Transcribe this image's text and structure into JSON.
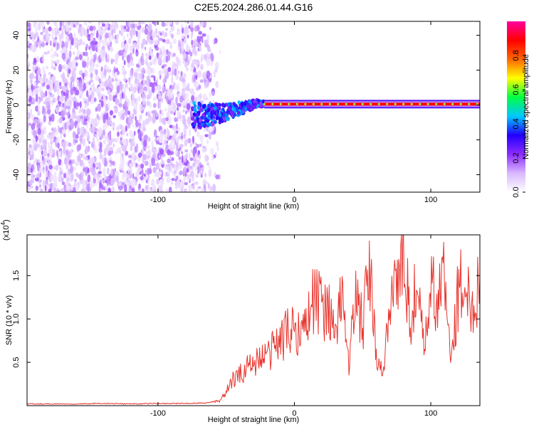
{
  "title": "C2E5.2024.286.01.44.G16",
  "chart_data": [
    {
      "type": "heatmap",
      "xlabel": "Height of straight line (km)",
      "ylabel": "Frequency (Hz)",
      "xlim": [
        -196,
        136
      ],
      "ylim": [
        -50,
        48
      ],
      "xticks": [
        -100,
        0,
        100
      ],
      "xtick_labels": [
        "-100",
        "0",
        "100"
      ],
      "yticks": [
        -40,
        -20,
        0,
        20,
        40
      ],
      "ytick_labels": [
        "-40",
        "-20",
        "0",
        "20",
        "40"
      ],
      "noise_region_x": [
        -196,
        -61
      ],
      "signal_line_freq_hz": 0.5,
      "signal_line_x": [
        -22,
        136
      ],
      "signal_blob_path": [
        {
          "x": -75,
          "freq": -6
        },
        {
          "x": -65,
          "freq": -6
        },
        {
          "x": -55,
          "freq": -5
        },
        {
          "x": -45,
          "freq": -3
        },
        {
          "x": -35,
          "freq": -1
        },
        {
          "x": -28,
          "freq": 1
        },
        {
          "x": -22,
          "freq": 0.5
        }
      ],
      "colorbar": {
        "label": "Normalized spectral amplitude",
        "range": [
          0,
          1
        ],
        "ticks": [
          0.0,
          0.2,
          0.4,
          0.6,
          0.8
        ],
        "tick_labels": [
          "0.0",
          "0.2",
          "0.4",
          "0.6",
          "0.8"
        ],
        "colors": [
          "#ffffff",
          "#d9b8ff",
          "#8c2bff",
          "#2200ff",
          "#00c8ff",
          "#00ff44",
          "#ffff00",
          "#ff6600",
          "#ff0000",
          "#ff00a0"
        ]
      },
      "grid": false
    },
    {
      "type": "line",
      "xlabel": "Height of straight line (km)",
      "ylabel": "SNR (10 * v/v)",
      "y_multiplier_label": "(x10",
      "y_multiplier_exp": "4",
      "xlim": [
        -196,
        136
      ],
      "ylim": [
        0,
        1.97
      ],
      "xticks": [
        -100,
        0,
        100
      ],
      "xtick_labels": [
        "-100",
        "0",
        "100"
      ],
      "yticks": [
        0.5,
        1.0,
        1.5
      ],
      "ytick_labels": [
        "0.5",
        "1.0",
        "1.5"
      ],
      "line_color": "#e8352e",
      "grid": false,
      "series": [
        {
          "x": [
            -196,
            -180,
            -160,
            -140,
            -120,
            -100,
            -80,
            -65,
            -55,
            -50,
            -45,
            -40,
            -35,
            -30,
            -25,
            -20,
            -15,
            -10,
            -5,
            0,
            5,
            10,
            15,
            20,
            25,
            30,
            35,
            40,
            45,
            50,
            55,
            60,
            65,
            70,
            75,
            80,
            85,
            90,
            95,
            100,
            105,
            110,
            115,
            120,
            125,
            130,
            136
          ],
          "y": [
            0.02,
            0.02,
            0.02,
            0.025,
            0.02,
            0.025,
            0.025,
            0.03,
            0.06,
            0.15,
            0.3,
            0.35,
            0.45,
            0.5,
            0.55,
            0.55,
            0.7,
            0.75,
            0.85,
            0.9,
            0.85,
            1.0,
            1.3,
            1.1,
            1.2,
            0.7,
            1.4,
            0.45,
            1.3,
            0.9,
            1.55,
            0.6,
            0.3,
            1.3,
            1.45,
            1.7,
            1.0,
            1.4,
            0.6,
            1.35,
            1.2,
            1.5,
            0.5,
            1.3,
            1.4,
            1.1,
            1.5
          ]
        }
      ]
    }
  ]
}
